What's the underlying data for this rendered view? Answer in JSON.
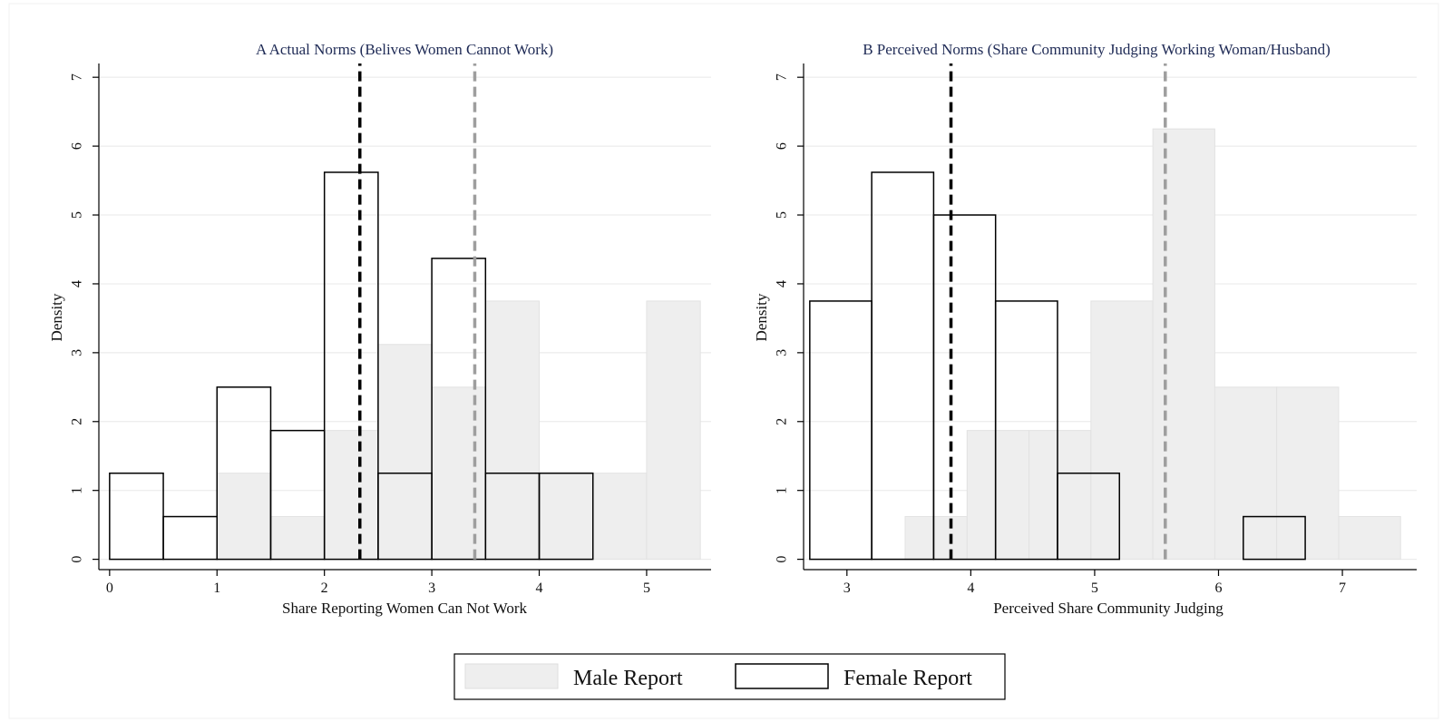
{
  "legend": {
    "items": [
      {
        "label": "Male Report",
        "fill": "#eeeeee",
        "stroke": "#dddddd"
      },
      {
        "label": "Female Report",
        "fill": "none",
        "stroke": "#000000"
      }
    ]
  },
  "colors": {
    "male_fill": "#eeeeee",
    "male_stroke": "#e2e2e2",
    "female_stroke": "#000000",
    "female_mean_line": "#000000",
    "male_mean_line": "#9e9e9e",
    "title": "#1e2a55",
    "grid": "#e8e8e8"
  },
  "chart_data": [
    {
      "type": "histogram",
      "title": "A  Actual Norms (Belives Women Cannot Work)",
      "xlabel": "Share Reporting Women Can Not Work",
      "ylabel": "Density",
      "xlim": [
        -0.1,
        5.6
      ],
      "ylim": [
        -0.15,
        7.2
      ],
      "xticks": [
        0,
        1,
        2,
        3,
        4,
        5
      ],
      "xtick_labels": [
        "0",
        "1",
        "2",
        "3",
        "4",
        "5"
      ],
      "yticks": [
        0,
        1,
        2,
        3,
        4,
        5,
        6,
        7
      ],
      "ytick_labels": [
        "0",
        "1",
        "2",
        "3",
        "4",
        "5",
        "6",
        "7"
      ],
      "grid": true,
      "series": [
        {
          "name": "Male Report",
          "bin_width": 0.5,
          "bins": [
            {
              "x0": 1.0,
              "value": 1.25
            },
            {
              "x0": 1.5,
              "value": 0.62
            },
            {
              "x0": 2.0,
              "value": 1.87
            },
            {
              "x0": 2.5,
              "value": 3.12
            },
            {
              "x0": 3.0,
              "value": 2.5
            },
            {
              "x0": 3.5,
              "value": 3.75
            },
            {
              "x0": 4.0,
              "value": 1.25
            },
            {
              "x0": 4.5,
              "value": 1.25
            },
            {
              "x0": 5.0,
              "value": 3.75
            }
          ]
        },
        {
          "name": "Female Report",
          "bin_width": 0.5,
          "bins": [
            {
              "x0": 0.0,
              "value": 1.25
            },
            {
              "x0": 0.5,
              "value": 0.62
            },
            {
              "x0": 1.0,
              "value": 2.5
            },
            {
              "x0": 1.5,
              "value": 1.87
            },
            {
              "x0": 2.0,
              "value": 5.62
            },
            {
              "x0": 2.5,
              "value": 1.25
            },
            {
              "x0": 3.0,
              "value": 4.37
            },
            {
              "x0": 3.5,
              "value": 1.25
            },
            {
              "x0": 4.0,
              "value": 1.25
            }
          ]
        }
      ],
      "mean_lines": [
        {
          "series": "Female Report",
          "x": 2.33
        },
        {
          "series": "Male Report",
          "x": 3.4
        }
      ]
    },
    {
      "type": "histogram",
      "title": "B  Perceived Norms (Share Community Judging Working Woman/Husband)",
      "xlabel": "Perceived Share Community Judging",
      "ylabel": "Density",
      "xlim": [
        2.65,
        7.6
      ],
      "ylim": [
        -0.15,
        7.2
      ],
      "xticks": [
        3,
        4,
        5,
        6,
        7
      ],
      "xtick_labels": [
        "3",
        "4",
        "5",
        "6",
        "7"
      ],
      "yticks": [
        0,
        1,
        2,
        3,
        4,
        5,
        6,
        7
      ],
      "ytick_labels": [
        "0",
        "1",
        "2",
        "3",
        "4",
        "5",
        "6",
        "7"
      ],
      "grid": true,
      "series": [
        {
          "name": "Male Report",
          "bin_width": 0.5,
          "bins": [
            {
              "x0": 3.47,
              "value": 0.62
            },
            {
              "x0": 3.97,
              "value": 1.87
            },
            {
              "x0": 4.47,
              "value": 1.87
            },
            {
              "x0": 4.97,
              "value": 3.75
            },
            {
              "x0": 5.47,
              "value": 6.25
            },
            {
              "x0": 5.97,
              "value": 2.5
            },
            {
              "x0": 6.47,
              "value": 2.5
            },
            {
              "x0": 6.97,
              "value": 0.62
            }
          ]
        },
        {
          "name": "Female Report",
          "bin_width": 0.5,
          "bins": [
            {
              "x0": 2.7,
              "value": 3.75
            },
            {
              "x0": 3.2,
              "value": 5.62
            },
            {
              "x0": 3.7,
              "value": 5.0
            },
            {
              "x0": 4.2,
              "value": 3.75
            },
            {
              "x0": 4.7,
              "value": 1.25
            },
            {
              "x0": 6.2,
              "value": 0.62
            }
          ]
        }
      ],
      "mean_lines": [
        {
          "series": "Female Report",
          "x": 3.84
        },
        {
          "series": "Male Report",
          "x": 5.57
        }
      ]
    }
  ]
}
